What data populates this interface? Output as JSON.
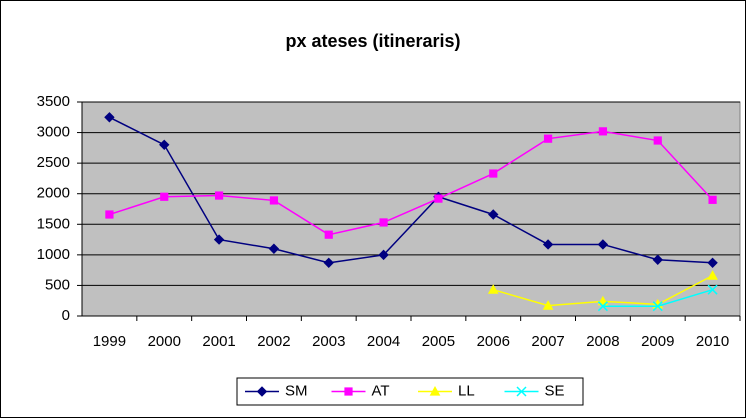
{
  "chart_data": {
    "type": "line",
    "title": "px ateses (itineraris)",
    "categories": [
      "1999",
      "2000",
      "2001",
      "2002",
      "2003",
      "2004",
      "2005",
      "2006",
      "2007",
      "2008",
      "2009",
      "2010"
    ],
    "series": [
      {
        "name": "SM",
        "color": "#000080",
        "marker": "diamond",
        "values": [
          3250,
          2800,
          1250,
          1100,
          870,
          1000,
          1950,
          1660,
          1170,
          1170,
          920,
          870
        ]
      },
      {
        "name": "AT",
        "color": "#ff00ff",
        "marker": "square",
        "values": [
          1660,
          1950,
          1970,
          1890,
          1330,
          1530,
          1920,
          2330,
          2900,
          3020,
          2870,
          1900
        ]
      },
      {
        "name": "LL",
        "color": "#ffff00",
        "marker": "triangle",
        "values": [
          null,
          null,
          null,
          null,
          null,
          null,
          null,
          430,
          170,
          240,
          190,
          660
        ]
      },
      {
        "name": "SE",
        "color": "#00ffff",
        "marker": "x",
        "values": [
          null,
          null,
          null,
          null,
          null,
          null,
          null,
          null,
          null,
          160,
          160,
          430
        ]
      }
    ],
    "ylim": [
      0,
      3500
    ],
    "yticks": [
      0,
      500,
      1000,
      1500,
      2000,
      2500,
      3000,
      3500
    ],
    "grid": true,
    "plot_background": "#c0c0c0",
    "legend": "bottom"
  }
}
